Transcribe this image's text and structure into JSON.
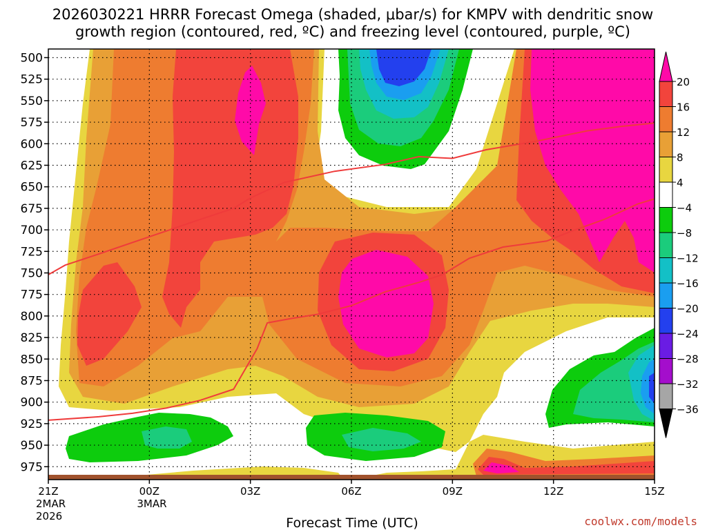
{
  "chart_data": {
    "type": "heatmap",
    "title_line1": "2026030221 HRRR Forecast Omega (shaded, μbar/s) for KMPV with dendritic snow",
    "title_line2": "growth region (contoured, red, ºC) and freezing level (contoured, purple, ºC)",
    "xlabel": "Forecast Time (UTC)",
    "x_ticks": [
      {
        "hour": 0,
        "label": "21Z",
        "date": "2MAR",
        "year": "2026"
      },
      {
        "hour": 3,
        "label": "00Z",
        "date": "3MAR",
        "year": ""
      },
      {
        "hour": 6,
        "label": "03Z",
        "date": "",
        "year": ""
      },
      {
        "hour": 9,
        "label": "06Z",
        "date": "",
        "year": ""
      },
      {
        "hour": 12,
        "label": "09Z",
        "date": "",
        "year": ""
      },
      {
        "hour": 15,
        "label": "12Z",
        "date": "",
        "year": ""
      },
      {
        "hour": 18,
        "label": "15Z",
        "date": "",
        "year": ""
      }
    ],
    "x_range_hours": [
      0,
      18
    ],
    "y_levels_mb": [
      500,
      525,
      550,
      575,
      600,
      625,
      650,
      675,
      700,
      725,
      750,
      775,
      800,
      825,
      850,
      875,
      900,
      925,
      950,
      975
    ],
    "y_range_mb": [
      490,
      990
    ],
    "grid": "dotted",
    "colorbar": {
      "levels": [
        "20",
        "16",
        "12",
        "8",
        "4",
        "−4",
        "−8",
        "−12",
        "−16",
        "−20",
        "−24",
        "−28",
        "−32",
        "−36"
      ],
      "colors": [
        "#ff0aa8",
        "#f2443c",
        "#ee7c30",
        "#e8a036",
        "#e8d640",
        "#ffffff",
        "#0dcc0d",
        "#1bcc7c",
        "#13c0c6",
        "#1a9ef0",
        "#2340ee",
        "#6a1ce4",
        "#a40ecc",
        "#a6a6a6",
        "#000000"
      ]
    },
    "freezing_level_line": {
      "color": "#ef3b3b",
      "points": [
        [
          0,
          752
        ],
        [
          0.5,
          741
        ],
        [
          1.5,
          728
        ],
        [
          3,
          708
        ],
        [
          4.5,
          688
        ],
        [
          5.5,
          675
        ],
        [
          6,
          663
        ],
        [
          7,
          645
        ],
        [
          8.5,
          632
        ],
        [
          10,
          624
        ],
        [
          11,
          615
        ],
        [
          12,
          617
        ],
        [
          13,
          607
        ],
        [
          14.5,
          597
        ],
        [
          16,
          585
        ],
        [
          17,
          580
        ],
        [
          18,
          576
        ]
      ]
    },
    "dgz_line": {
      "color": "#ef3b3b",
      "points": [
        [
          0,
          921
        ],
        [
          1.5,
          917
        ],
        [
          2.5,
          913
        ],
        [
          3.5,
          907
        ],
        [
          4.5,
          898
        ],
        [
          5.5,
          885
        ],
        [
          6.2,
          838
        ],
        [
          6.5,
          808
        ],
        [
          7.2,
          803
        ],
        [
          8,
          798
        ],
        [
          9,
          788
        ],
        [
          10,
          772
        ],
        [
          11,
          761
        ],
        [
          11.7,
          752
        ],
        [
          12.5,
          733
        ],
        [
          13.5,
          720
        ],
        [
          14.8,
          713
        ],
        [
          15.5,
          702
        ],
        [
          16.5,
          688
        ],
        [
          17.5,
          670
        ],
        [
          18,
          664
        ]
      ]
    }
  },
  "credit": "coolwx.com/models"
}
